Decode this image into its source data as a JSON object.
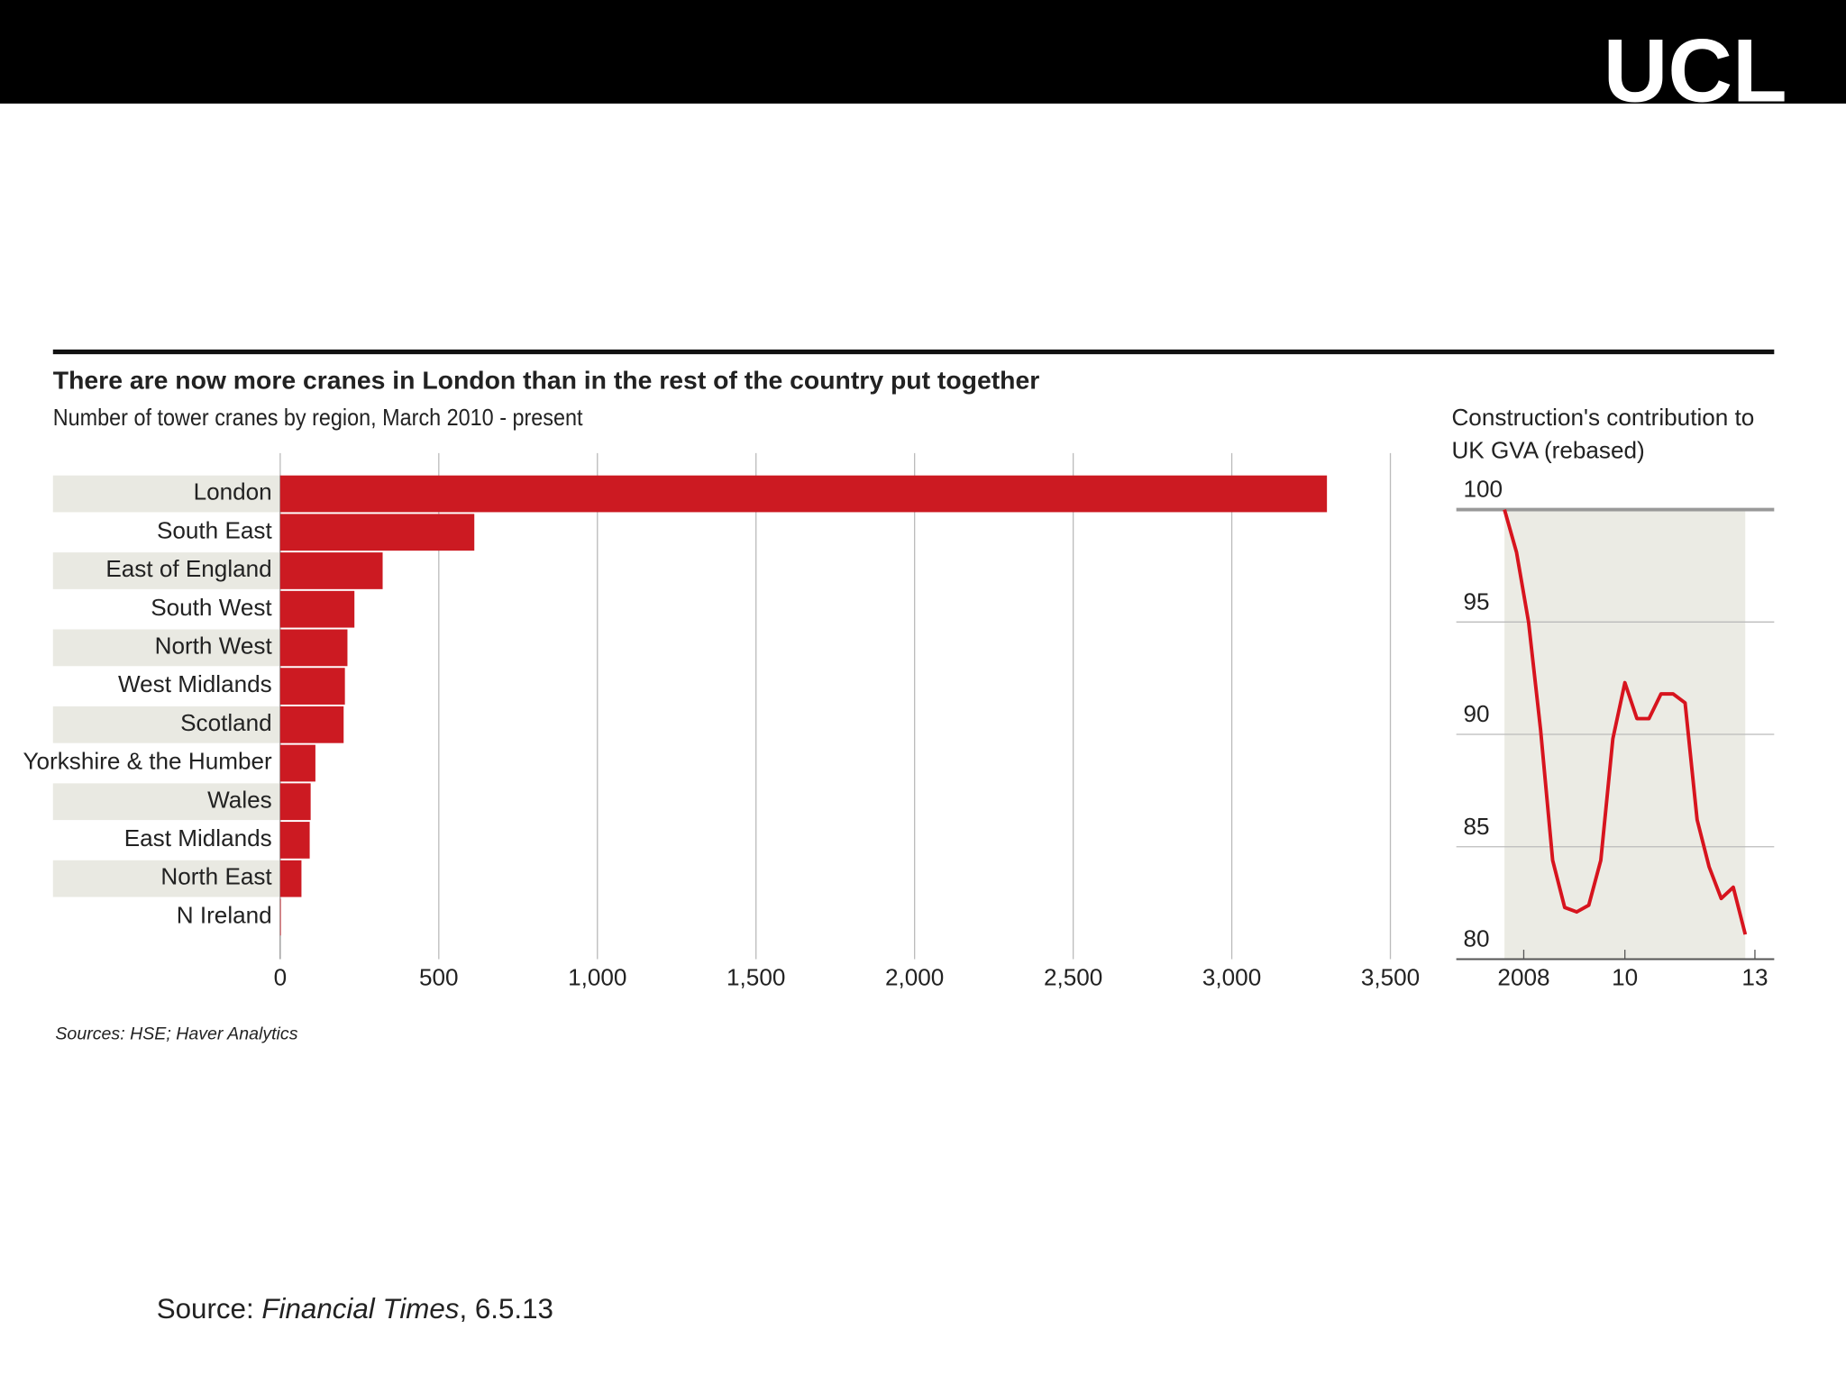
{
  "slide": {
    "logo": "UCL",
    "source": [
      "Source: ",
      "Financial Times",
      ", 6.5.13"
    ]
  },
  "chart_data": [
    {
      "type": "hbar",
      "title": "There are now more cranes in London than in the rest of the country put together",
      "subtitle": "Number of tower cranes by region, March 2010 - present",
      "categories": [
        "London",
        "South East",
        "East of England",
        "South West",
        "North West",
        "West Midlands",
        "Scotland",
        "Yorkshire & the Humber",
        "Wales",
        "East Midlands",
        "North East",
        "N Ireland"
      ],
      "values": [
        3300,
        612,
        323,
        234,
        212,
        204,
        200,
        111,
        96,
        93,
        67,
        2
      ],
      "color": "#cc1a22",
      "xlim": [
        0,
        3500
      ],
      "xticks": [
        0,
        500,
        {
          "value": 1000,
          "label": "1,000"
        },
        {
          "value": 1500,
          "label": "1,500"
        },
        {
          "value": 2000,
          "label": "2,000"
        },
        {
          "value": 2500,
          "label": "2,500"
        },
        {
          "value": 3000,
          "label": "3,000"
        },
        {
          "value": 3500,
          "label": "3,500"
        }
      ],
      "grid": true,
      "source": "Sources: HSE; Haver Analytics"
    },
    {
      "type": "line",
      "title": [
        "Construction's contribution to",
        "UK GVA (rebased)"
      ],
      "x": [
        2008,
        2008.25,
        2008.5,
        2008.75,
        2009,
        2009.25,
        2009.5,
        2009.75,
        2010,
        2010.25,
        2010.5,
        2010.75,
        2011,
        2011.25,
        2011.5,
        2011.75,
        2012,
        2012.25,
        2012.5,
        2012.75,
        2013
      ],
      "values": [
        100,
        98.1,
        95,
        90.2,
        84.4,
        82.3,
        82.1,
        82.4,
        84.4,
        89.8,
        92.3,
        90.7,
        90.7,
        91.8,
        91.8,
        91.4,
        86.2,
        84.1,
        82.7,
        83.2,
        81.1
      ],
      "color": "#d7141e",
      "xlim": [
        2007,
        2013.6
      ],
      "xticks": [
        {
          "value": 2008.4,
          "label": "2008"
        },
        {
          "value": 2010.5,
          "label": "10"
        },
        {
          "value": 2013.2,
          "label": "13"
        }
      ],
      "ylim": [
        80,
        100
      ],
      "yticks": [
        80,
        85,
        90,
        95,
        100
      ],
      "grid": true
    }
  ]
}
